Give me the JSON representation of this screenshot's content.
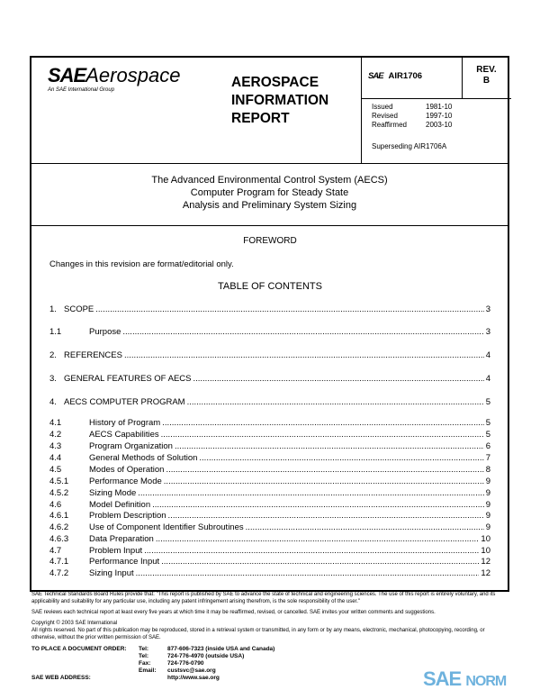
{
  "header": {
    "logo_sae": "SAE",
    "logo_aerospace": "Aerospace",
    "logo_tagline": "An SAE International Group",
    "doc_type": [
      "AEROSPACE",
      "INFORMATION",
      "REPORT"
    ],
    "doc_sae": "SAE",
    "doc_number": "AIR1706",
    "rev_label": "REV.",
    "rev_value": "B",
    "dates": [
      {
        "label": "Issued",
        "value": "1981-10"
      },
      {
        "label": "Revised",
        "value": "1997-10"
      },
      {
        "label": "Reaffirmed",
        "value": "2003-10"
      }
    ],
    "superseding": "Superseding AIR1706A"
  },
  "title": [
    "The Advanced Environmental Control System (AECS)",
    "Computer Program for Steady State",
    "Analysis and Preliminary System Sizing"
  ],
  "foreword": {
    "heading": "FOREWORD",
    "text": "Changes in this revision are format/editorial only."
  },
  "toc": {
    "heading": "TABLE OF CONTENTS",
    "entries": [
      {
        "num": "1.",
        "title": "SCOPE",
        "page": "3"
      },
      {
        "num": "1.1",
        "title": "Purpose",
        "page": "3"
      },
      {
        "num": "2.",
        "title": "REFERENCES",
        "page": "4"
      },
      {
        "num": "3.",
        "title": "GENERAL FEATURES OF AECS",
        "page": "4"
      },
      {
        "num": "4.",
        "title": "AECS COMPUTER PROGRAM",
        "page": "5"
      },
      {
        "num": "4.1",
        "title": "History of Program",
        "page": "5"
      },
      {
        "num": "4.2",
        "title": "AECS Capabilities",
        "page": "5"
      },
      {
        "num": "4.3",
        "title": "Program Organization",
        "page": "6"
      },
      {
        "num": "4.4",
        "title": "General Methods of Solution",
        "page": "7"
      },
      {
        "num": "4.5",
        "title": "Modes of Operation",
        "page": "8"
      },
      {
        "num": "4.5.1",
        "title": "Performance Mode",
        "page": "9"
      },
      {
        "num": "4.5.2",
        "title": "Sizing Mode",
        "page": "9"
      },
      {
        "num": "4.6",
        "title": "Model Definition",
        "page": "9"
      },
      {
        "num": "4.6.1",
        "title": "Problem Description",
        "page": "9"
      },
      {
        "num": "4.6.2",
        "title": "Use of Component Identifier Subroutines",
        "page": "9"
      },
      {
        "num": "4.6.3",
        "title": "Data Preparation",
        "page": "10"
      },
      {
        "num": "4.7",
        "title": "Problem Input",
        "page": "10"
      },
      {
        "num": "4.7.1",
        "title": "Performance Input",
        "page": "12"
      },
      {
        "num": "4.7.2",
        "title": "Sizing Input",
        "page": "12"
      }
    ]
  },
  "footer": {
    "rules": "SAE Technical Standards Board Rules provide that: \"This report is published by SAE to advance the state of technical and engineering sciences. The use of this report is entirely voluntary, and its applicability and suitability for any particular use, including any patent infringement arising therefrom, is the sole responsibility of the user.\"",
    "review": "SAE reviews each technical report at least every five years at which time it may be reaffirmed, revised, or cancelled. SAE invites your written comments and suggestions.",
    "copyright": "Copyright © 2003 SAE International",
    "rights": "All rights reserved. No part of this publication may be reproduced, stored in a retrieval system or transmitted, in any form or by any means, electronic, mechanical, photocopying, recording, or otherwise, without the prior written permission of SAE.",
    "order_label": "TO PLACE A DOCUMENT ORDER:",
    "web_label": "SAE WEB ADDRESS:",
    "contacts": [
      {
        "label": "Tel:",
        "value": "877-606-7323 (inside USA and Canada)"
      },
      {
        "label": "Tel:",
        "value": "724-776-4970 (outside USA)"
      },
      {
        "label": "Fax:",
        "value": "724-776-0790"
      },
      {
        "label": "Email:",
        "value": "custsvc@sae.org"
      },
      {
        "label": "",
        "value": "http://www.sae.org"
      }
    ],
    "watermark": "SAE NORM"
  },
  "colors": {
    "watermark": "#4a9fd5"
  }
}
